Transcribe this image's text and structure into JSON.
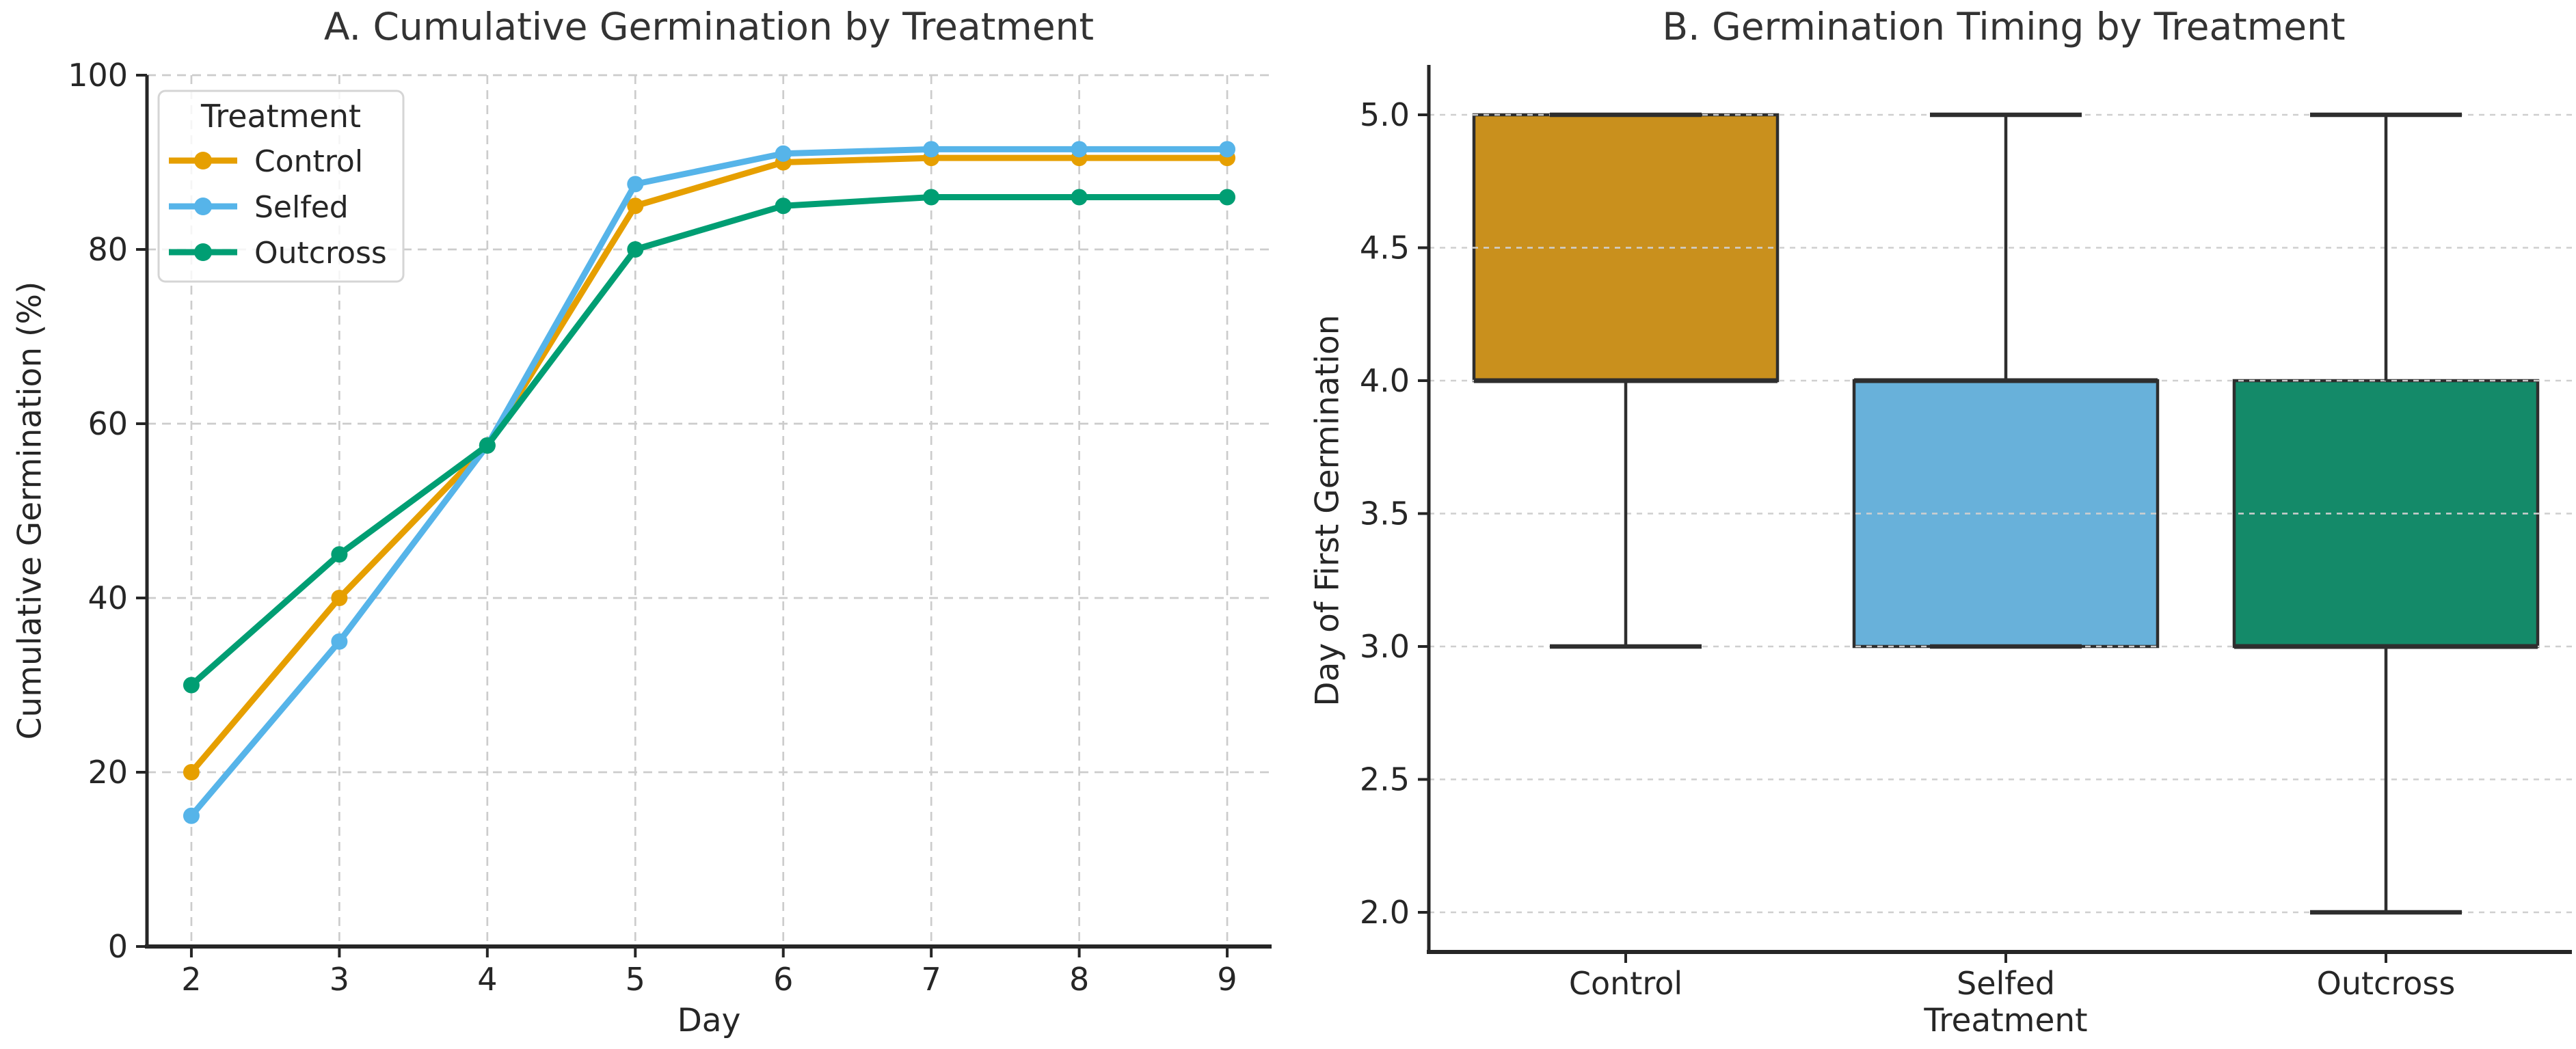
{
  "chart_data": [
    {
      "type": "line",
      "panel": "A",
      "title": "A. Cumulative Germination by Treatment",
      "xlabel": "Day",
      "ylabel": "Cumulative Germination (%)",
      "x": [
        2,
        3,
        4,
        5,
        6,
        7,
        8,
        9
      ],
      "xlim": [
        1.7,
        9.3
      ],
      "ylim": [
        0,
        100
      ],
      "yticks": [
        0,
        20,
        40,
        60,
        80,
        100
      ],
      "grid": "both",
      "legend": {
        "title": "Treatment",
        "position": "upper left"
      },
      "series": [
        {
          "name": "Control",
          "color": "#E69F00",
          "values": [
            20,
            40,
            57.5,
            85,
            90,
            90.5,
            90.5,
            90.5
          ]
        },
        {
          "name": "Selfed",
          "color": "#56B4E9",
          "values": [
            15,
            35,
            57.5,
            87.5,
            91,
            91.5,
            91.5,
            91.5
          ]
        },
        {
          "name": "Outcross",
          "color": "#009E73",
          "values": [
            30,
            45,
            57.5,
            80,
            85,
            86,
            86,
            86
          ]
        }
      ]
    },
    {
      "type": "box",
      "panel": "B",
      "title": "B. Germination Timing by Treatment",
      "xlabel": "Treatment",
      "ylabel": "Day of First Germination",
      "categories": [
        "Control",
        "Selfed",
        "Outcross"
      ],
      "yticks": [
        2.0,
        2.5,
        3.0,
        3.5,
        4.0,
        4.5,
        5.0
      ],
      "ylim": [
        1.85,
        5.2
      ],
      "grid": "horizontal",
      "boxes": [
        {
          "label": "Control",
          "fill": "#C9901D",
          "whislo": 3.0,
          "q1": 4.0,
          "med": 4.0,
          "q3": 5.0,
          "whishi": 5.0
        },
        {
          "label": "Selfed",
          "fill": "#68B1DA",
          "whislo": 3.0,
          "q1": 3.0,
          "med": 4.0,
          "q3": 4.0,
          "whishi": 5.0
        },
        {
          "label": "Outcross",
          "fill": "#148A69",
          "whislo": 2.0,
          "q1": 3.0,
          "med": 3.0,
          "q3": 4.0,
          "whishi": 5.0
        }
      ]
    }
  ],
  "style": {
    "background": "#ffffff",
    "text_color": "#262626",
    "title_color": "#333333",
    "grid_color": "#cccccc",
    "spine_color": "#262626",
    "box_edge_color": "#2e2e2e",
    "legend_border_color": "#d5d5d5",
    "legend_fill": "rgba(255,255,255,0.8)"
  }
}
